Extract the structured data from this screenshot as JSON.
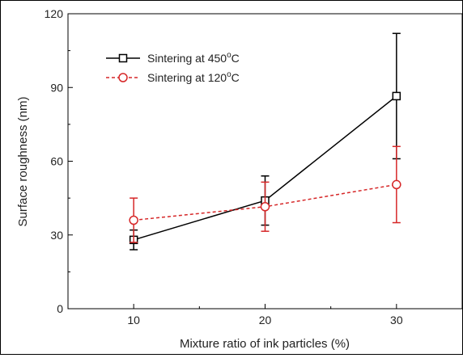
{
  "chart_data": {
    "type": "line",
    "xlabel": "Mixture ratio of ink particles (%)",
    "ylabel": "Surface roughness (nm)",
    "xlim": [
      5,
      35
    ],
    "ylim": [
      0,
      120
    ],
    "x_ticks": [
      "10",
      "20",
      "30"
    ],
    "y_ticks": [
      "0",
      "30",
      "60",
      "90",
      "120"
    ],
    "x_tick_values": [
      10,
      20,
      30
    ],
    "y_tick_values": [
      0,
      30,
      60,
      90,
      120
    ],
    "grid": false,
    "legend_position": "top-left",
    "series": [
      {
        "name": "Sintering at 450°C",
        "name_parts": [
          "Sintering at 450",
          "o",
          "C"
        ],
        "color": "#000000",
        "marker": "square",
        "line_style": "solid",
        "x": [
          10,
          20,
          30
        ],
        "y": [
          28,
          44,
          86.5
        ],
        "err": [
          4,
          10,
          25.5
        ]
      },
      {
        "name": "Sintering at 120°C",
        "name_parts": [
          "Sintering at 120",
          "o",
          "C"
        ],
        "color": "#d62728",
        "marker": "circle",
        "line_style": "dashed",
        "x": [
          10,
          20,
          30
        ],
        "y": [
          36,
          41.5,
          50.5
        ],
        "err": [
          9,
          10,
          15.5
        ]
      }
    ]
  }
}
